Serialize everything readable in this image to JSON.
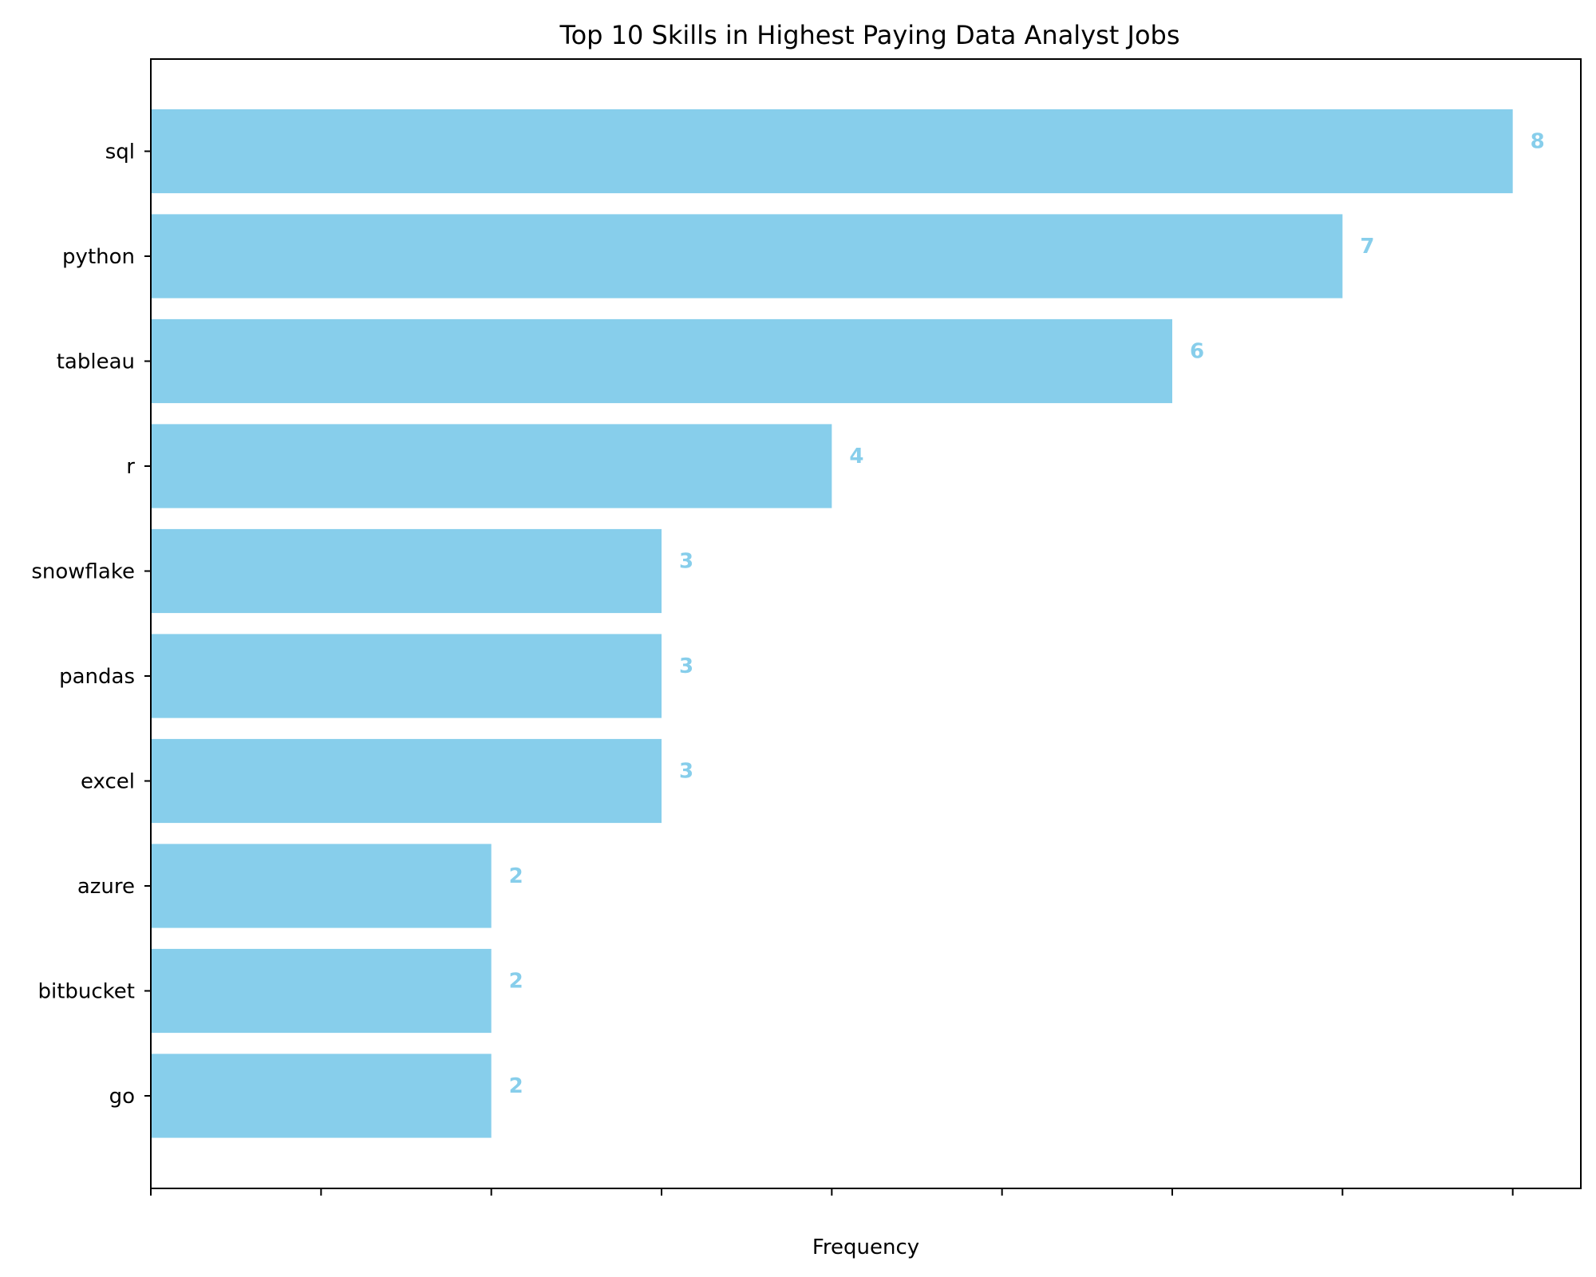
{
  "chart_data": {
    "type": "bar",
    "orientation": "horizontal",
    "title": "Top 10 Skills in Highest Paying Data Analyst Jobs",
    "xlabel": "Frequency",
    "ylabel": "",
    "categories": [
      "sql",
      "python",
      "tableau",
      "r",
      "snowflake",
      "pandas",
      "excel",
      "azure",
      "bitbucket",
      "go"
    ],
    "values": [
      8,
      7,
      6,
      4,
      3,
      3,
      3,
      2,
      2,
      2
    ],
    "data_labels": [
      "8",
      "7",
      "6",
      "4",
      "3",
      "3",
      "3",
      "2",
      "2",
      "2"
    ],
    "xlim": [
      0,
      8.4
    ],
    "x_ticks": [
      0,
      1,
      2,
      3,
      4,
      5,
      6,
      7,
      8
    ],
    "x_tick_labels_visible": false,
    "bar_color": "#87CEEB",
    "grid": false,
    "legend": "none"
  }
}
